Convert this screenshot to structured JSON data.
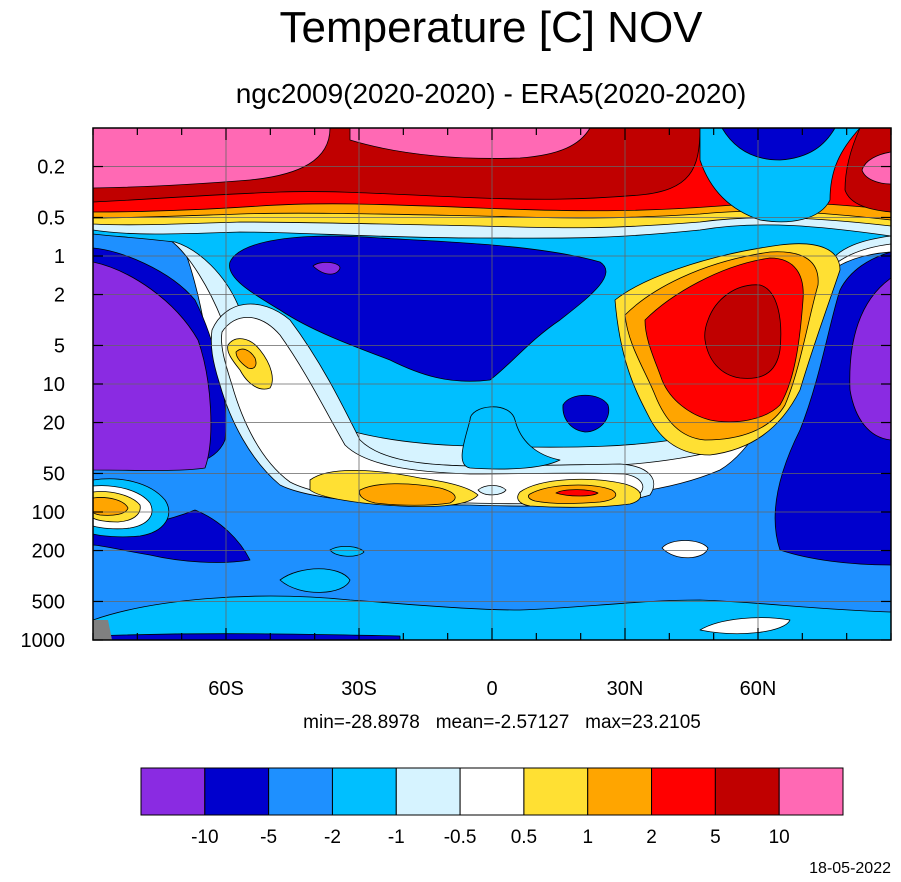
{
  "chart_data": {
    "type": "heatmap",
    "title": "Temperature [C] NOV",
    "subtitle": "ngc2009(2020-2020) - ERA5(2020-2020)",
    "x_ticks": [
      "60S",
      "30S",
      "0",
      "30N",
      "60N"
    ],
    "x_tick_values": [
      -60,
      -30,
      0,
      30,
      60
    ],
    "xlim": [
      -90,
      90
    ],
    "y_ticks": [
      "0.2",
      "0.5",
      "1",
      "2",
      "5",
      "10",
      "20",
      "50",
      "100",
      "200",
      "500",
      "1000"
    ],
    "y_tick_values": [
      0.2,
      0.5,
      1,
      2,
      5,
      10,
      20,
      50,
      100,
      200,
      500,
      1000
    ],
    "ylim": [
      0.1,
      1000
    ],
    "y_scale": "log",
    "y_inverted": true,
    "grid": true,
    "stats": "min=-28.8978   mean=-2.57127   max=23.2105",
    "colorbar": {
      "labels": [
        "-10",
        "-5",
        "-2",
        "-1",
        "-0.5",
        "0.5",
        "1",
        "2",
        "5",
        "10"
      ],
      "colors": [
        "#8a2be2",
        "#0000cd",
        "#1e90ff",
        "#00bfff",
        "#d6f3ff",
        "#ffffff",
        "#ffe033",
        "#ffa500",
        "#ff0000",
        "#c00000",
        "#ff69b4"
      ]
    }
  },
  "footer": {
    "date": "18-05-2022"
  }
}
